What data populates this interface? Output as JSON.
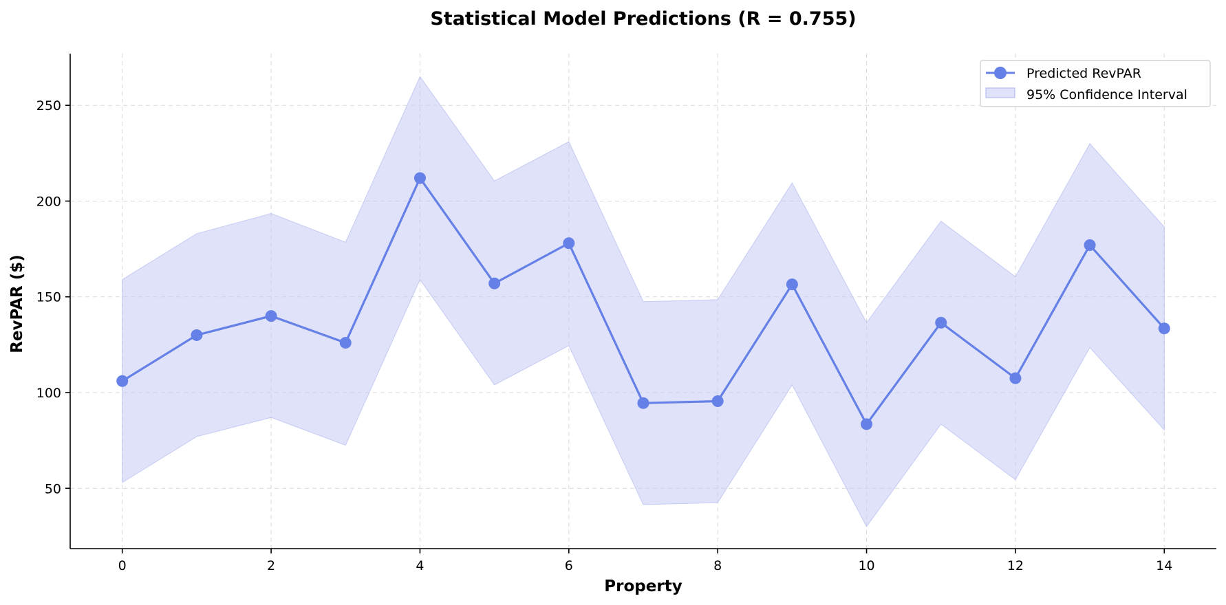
{
  "chart_data": {
    "type": "line",
    "title": "Statistical Model Predictions (R = 0.755)",
    "xlabel": "Property",
    "ylabel": "RevPAR ($)",
    "xlim": [
      -0.7,
      14.7
    ],
    "ylim": [
      18.5,
      277
    ],
    "xticks": [
      0,
      2,
      4,
      6,
      8,
      10,
      12,
      14
    ],
    "yticks": [
      50,
      100,
      150,
      200,
      250
    ],
    "grid": true,
    "legend_position": "top-right",
    "x": [
      0,
      1,
      2,
      3,
      4,
      5,
      6,
      7,
      8,
      9,
      10,
      11,
      12,
      13,
      14
    ],
    "series": [
      {
        "name": "Predicted RevPAR",
        "kind": "line-marker",
        "color": "#6580e6",
        "values": [
          106,
          130,
          140,
          126,
          212,
          157,
          178,
          94.5,
          95.5,
          156.5,
          83.5,
          136.5,
          107.5,
          177,
          133.5
        ]
      },
      {
        "name": "95% Confidence Interval",
        "kind": "band",
        "color": "#c5caf3",
        "lower": [
          53,
          77,
          87,
          72.5,
          159,
          104,
          124.5,
          41.5,
          42.5,
          104,
          30,
          83.5,
          54.5,
          123.5,
          80.5
        ],
        "upper": [
          159,
          183,
          193.5,
          178.5,
          265,
          210.5,
          231,
          147.5,
          148.5,
          209.5,
          136.5,
          189.5,
          160.5,
          230,
          186.5
        ]
      }
    ]
  }
}
